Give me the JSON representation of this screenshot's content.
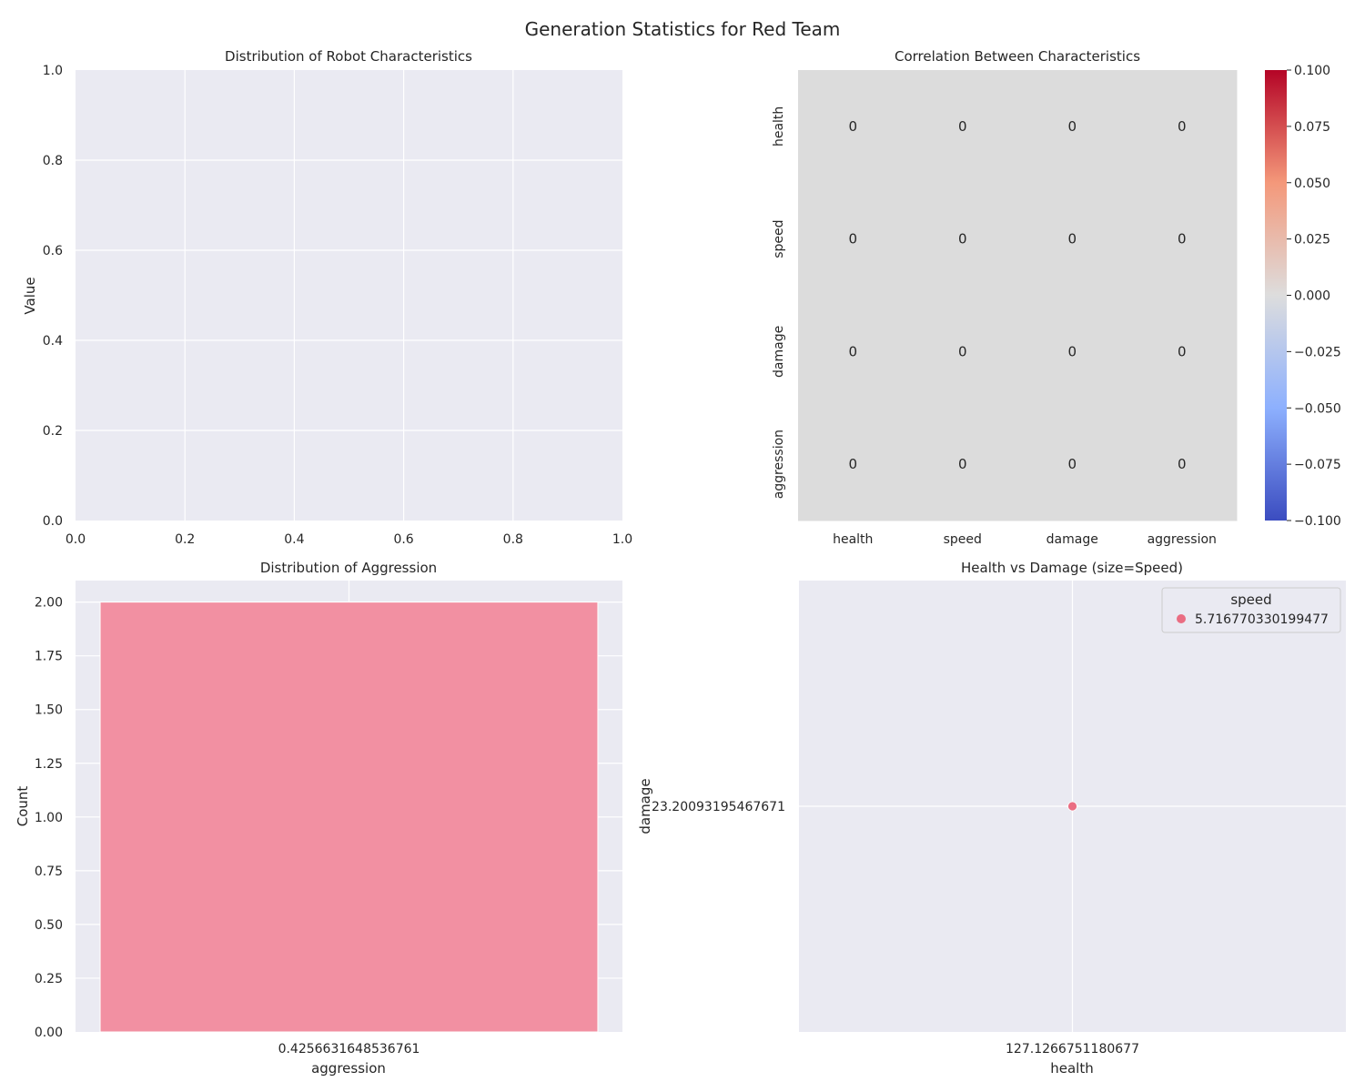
{
  "figure": {
    "title": "Generation Statistics for Red Team"
  },
  "colors": {
    "axes_bg": "#eaeaf2",
    "grid": "#ffffff",
    "bar": "#f28ea0",
    "bar_edge": "#ffffff",
    "point": "#ea6d82",
    "heat_zero": "#dcdcdc",
    "text": "#262626"
  },
  "chart_data": [
    {
      "id": "dist",
      "type": "box",
      "title": "Distribution of Robot Characteristics",
      "xlabel": "",
      "ylabel": "Value",
      "xlim": [
        0,
        1
      ],
      "ylim": [
        0,
        1
      ],
      "xticks": [
        "0.0",
        "0.2",
        "0.4",
        "0.6",
        "0.8",
        "1.0"
      ],
      "yticks": [
        "0.0",
        "0.2",
        "0.4",
        "0.6",
        "0.8",
        "1.0"
      ],
      "series": []
    },
    {
      "id": "corr",
      "type": "heatmap",
      "title": "Correlation Between Characteristics",
      "rows": [
        "health",
        "speed",
        "damage",
        "aggression"
      ],
      "cols": [
        "health",
        "speed",
        "damage",
        "aggression"
      ],
      "values": [
        [
          0,
          0,
          0,
          0
        ],
        [
          0,
          0,
          0,
          0
        ],
        [
          0,
          0,
          0,
          0
        ],
        [
          0,
          0,
          0,
          0
        ]
      ],
      "colormap": "coolwarm",
      "colorbar_range": [
        -0.1,
        0.1
      ],
      "colorbar_ticks": [
        "0.100",
        "0.075",
        "0.050",
        "0.025",
        "0.000",
        "−0.025",
        "−0.050",
        "−0.075",
        "−0.100"
      ]
    },
    {
      "id": "hist",
      "type": "bar",
      "title": "Distribution of Aggression",
      "xlabel": "aggression",
      "ylabel": "Count",
      "categories": [
        "0.4256631648536761"
      ],
      "values": [
        2
      ],
      "ylim": [
        0,
        2.1
      ],
      "yticks": [
        "0.00",
        "0.25",
        "0.50",
        "0.75",
        "1.00",
        "1.25",
        "1.50",
        "1.75",
        "2.00"
      ]
    },
    {
      "id": "scatter",
      "type": "scatter",
      "title": "Health vs Damage (size=Speed)",
      "xlabel": "health",
      "ylabel": "damage",
      "points": [
        {
          "x": 127.1266751180677,
          "y": 23.20093195467671,
          "speed": 5.716770330199477
        }
      ],
      "xticks": [
        "127.1266751180677"
      ],
      "yticks": [
        "23.20093195467671"
      ],
      "legend": {
        "title": "speed",
        "entries": [
          "5.716770330199477"
        ],
        "position": "top-right"
      }
    }
  ]
}
